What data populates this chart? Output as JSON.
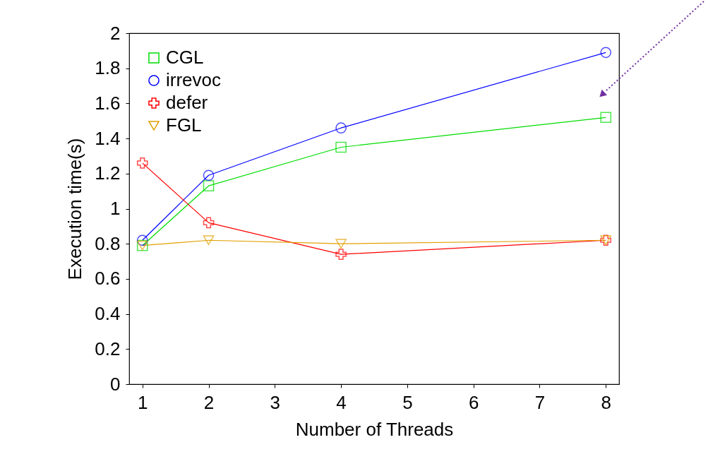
{
  "chart_data": {
    "type": "line",
    "xlabel": "Number of Threads",
    "ylabel": "Execution time(s)",
    "x": [
      1,
      2,
      4,
      8
    ],
    "series": [
      {
        "name": "CGL",
        "color": "#00dd00",
        "marker": "square",
        "values": [
          0.79,
          1.13,
          1.35,
          1.52
        ]
      },
      {
        "name": "irrevoc",
        "color": "#0000ff",
        "marker": "circle",
        "values": [
          0.82,
          1.19,
          1.46,
          1.89
        ]
      },
      {
        "name": "defer",
        "color": "#ff0000",
        "marker": "cross",
        "values": [
          1.26,
          0.92,
          0.74,
          0.82
        ]
      },
      {
        "name": "FGL",
        "color": "#e0a000",
        "marker": "triangle",
        "values": [
          0.79,
          0.82,
          0.8,
          0.82
        ]
      }
    ],
    "xlim": [
      0.8,
      8.2
    ],
    "xticks": [
      1,
      2,
      3,
      4,
      5,
      6,
      7,
      8
    ],
    "ylim": [
      0,
      2
    ],
    "yticks": [
      0,
      0.2,
      0.4,
      0.6,
      0.8,
      1,
      1.2,
      1.4,
      1.6,
      1.8,
      2
    ],
    "grid": false,
    "legend": "top left",
    "line_style": "solid"
  }
}
